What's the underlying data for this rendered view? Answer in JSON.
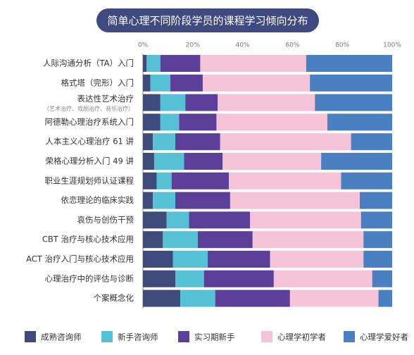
{
  "chart_data": {
    "type": "stacked_barh",
    "title": "简单心理不同阶段学员的课程学习倾向分布",
    "categories": [
      "人际沟通分析（TA）入门",
      "格式塔（完形）入门",
      "表达性艺术治疗",
      "阿德勒心理治疗系统入门",
      "人本主义心理治疗 61 讲",
      "荣格心理分析入门 49 讲",
      "职业生涯规划师认证课程",
      "依恋理论的临床实践",
      "哀伤与创伤干预",
      "CBT 治疗与核心技术应用",
      "ACT 治疗入门与核心技术应用",
      "心理治疗中的评估与诊断",
      "个案概念化"
    ],
    "category_notes": [
      null,
      null,
      "（艺术治疗、戏剧治疗、音乐治疗）",
      null,
      null,
      null,
      null,
      null,
      null,
      null,
      null,
      null,
      null
    ],
    "series": [
      {
        "name": "成熟咨询师",
        "color": "#3e4b7c",
        "values": [
          1.5,
          3,
          7,
          7,
          4,
          4.5,
          5.5,
          4,
          9.5,
          8,
          12,
          13,
          15
        ]
      },
      {
        "name": "新手咨询师",
        "color": "#56c1d5",
        "values": [
          5.5,
          8,
          10,
          7.5,
          9,
          12,
          6,
          9,
          9,
          14,
          14,
          11.5,
          14
        ]
      },
      {
        "name": "实习期新手",
        "color": "#5c3f98",
        "values": [
          16,
          13,
          13,
          15,
          18,
          15.5,
          23,
          22,
          24.5,
          22,
          25,
          28,
          30
        ]
      },
      {
        "name": "心理学初学者",
        "color": "#f4c3d7",
        "values": [
          42.5,
          43,
          39,
          44.5,
          52.5,
          39.5,
          45,
          52,
          44.5,
          44.5,
          37.5,
          39.5,
          35.5
        ]
      },
      {
        "name": "心理学爱好者",
        "color": "#4a80c2",
        "values": [
          34.5,
          33,
          31,
          26,
          16.5,
          28.5,
          20.5,
          13,
          12.5,
          11.5,
          11.5,
          8,
          5.5
        ]
      }
    ],
    "xlim": [
      0,
      100
    ],
    "xticks": [
      {
        "value": 0,
        "label": "0%"
      },
      {
        "value": 20,
        "label": "20%"
      },
      {
        "value": 40,
        "label": "40%"
      },
      {
        "value": 60,
        "label": "60%"
      },
      {
        "value": 80,
        "label": "80%"
      },
      {
        "value": 100,
        "label": "100%"
      }
    ],
    "grid": false
  }
}
